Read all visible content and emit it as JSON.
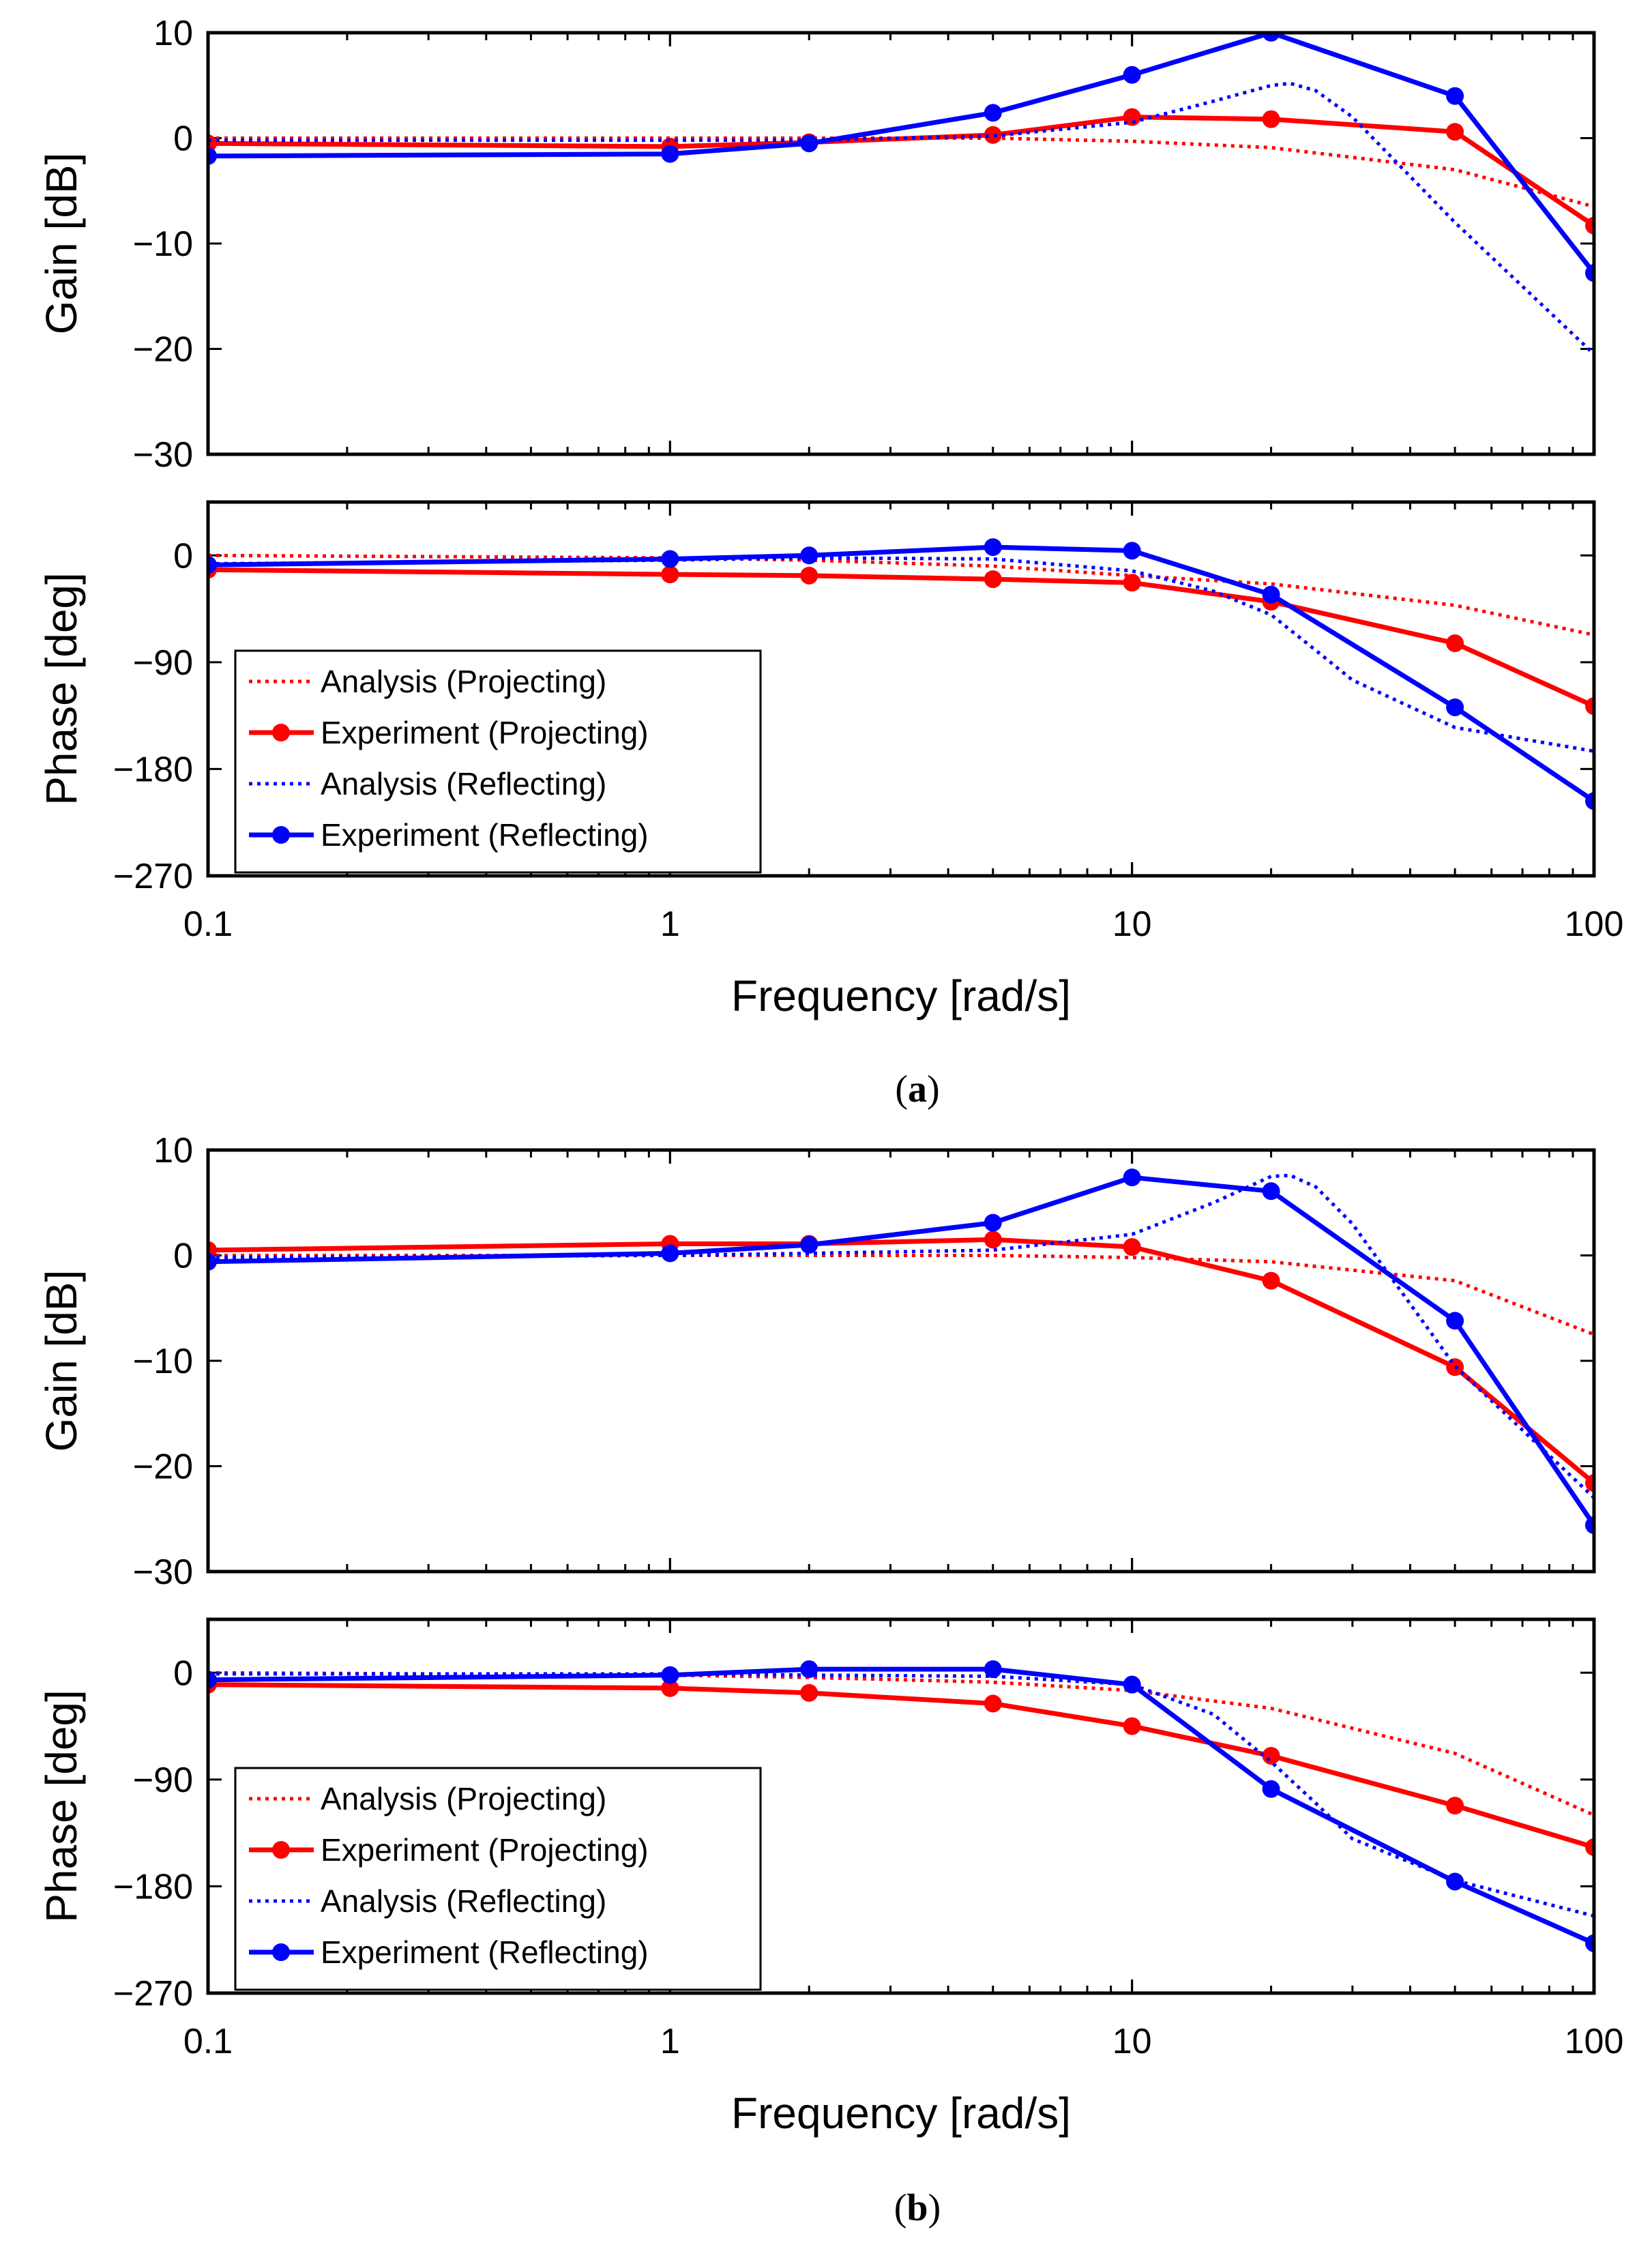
{
  "colors": {
    "projecting": "#ff0000",
    "reflecting": "#0000ff",
    "axis": "#000000"
  },
  "chart_data": [
    {
      "id": "a",
      "caption_letter": "a",
      "xlabel": "Frequency [rad/s]",
      "xscale": "log",
      "xlim": [
        0.1,
        100
      ],
      "xticks": [
        0.1,
        1,
        10,
        100
      ],
      "xtick_labels": [
        "0.1",
        "1",
        "10",
        "100"
      ],
      "subplots": [
        {
          "id": "gain",
          "type": "line",
          "ylabel": "Gain [dB]",
          "ylim": [
            -30,
            10
          ],
          "yticks": [
            10,
            0,
            -10,
            -20,
            -30
          ],
          "ytick_labels": [
            "10",
            "0",
            "−10",
            "−20",
            "−30"
          ],
          "series": [
            {
              "name": "Analysis (Projecting)",
              "style": "dotted",
              "color": "projecting",
              "x": [
                0.1,
                1,
                2,
                5,
                10,
                20,
                50,
                100
              ],
              "y": [
                0,
                0,
                0,
                0,
                -0.3,
                -0.9,
                -3,
                -6.5
              ]
            },
            {
              "name": "Experiment (Projecting)",
              "style": "solid-marker",
              "color": "projecting",
              "x": [
                0.1,
                1,
                2,
                5,
                10,
                20,
                50,
                100
              ],
              "y": [
                -0.5,
                -0.8,
                -0.4,
                0.3,
                2.0,
                1.8,
                0.6,
                -8.3
              ]
            },
            {
              "name": "Analysis (Reflecting)",
              "style": "dotted",
              "color": "reflecting",
              "x": [
                0.1,
                1,
                2,
                5,
                10,
                15,
                20,
                22,
                25,
                30,
                50,
                100
              ],
              "y": [
                -0.2,
                -0.2,
                -0.2,
                0.2,
                1.5,
                3.5,
                5.0,
                5.2,
                4.5,
                2.0,
                -8.0,
                -20.5
              ]
            },
            {
              "name": "Experiment (Reflecting)",
              "style": "solid-marker",
              "color": "reflecting",
              "x": [
                0.1,
                1,
                2,
                5,
                10,
                20,
                50,
                100
              ],
              "y": [
                -1.7,
                -1.5,
                -0.5,
                2.4,
                6.0,
                10.0,
                4.0,
                -12.8
              ]
            }
          ]
        },
        {
          "id": "phase",
          "type": "line",
          "ylabel": "Phase [deg]",
          "ylim": [
            -270,
            45
          ],
          "yticks": [
            0,
            -90,
            -180,
            -270
          ],
          "ytick_labels": [
            "0",
            "−90",
            "−180",
            "−270"
          ],
          "legend": "lower-left",
          "series": [
            {
              "name": "Analysis (Projecting)",
              "style": "dotted",
              "color": "projecting",
              "x": [
                0.1,
                1,
                2,
                5,
                10,
                20,
                50,
                100
              ],
              "y": [
                0,
                -2,
                -4,
                -9,
                -17,
                -24,
                -42,
                -67
              ]
            },
            {
              "name": "Experiment (Projecting)",
              "style": "solid-marker",
              "color": "projecting",
              "x": [
                0.1,
                1,
                2,
                5,
                10,
                20,
                50,
                100
              ],
              "y": [
                -12,
                -16,
                -17,
                -20,
                -23,
                -39,
                -74,
                -127
              ]
            },
            {
              "name": "Analysis (Reflecting)",
              "style": "dotted",
              "color": "reflecting",
              "x": [
                0.1,
                1,
                2,
                5,
                10,
                15,
                20,
                25,
                30,
                50,
                100
              ],
              "y": [
                -7,
                -4,
                -2,
                -3,
                -13,
                -30,
                -50,
                -80,
                -105,
                -145,
                -165
              ]
            },
            {
              "name": "Experiment (Reflecting)",
              "style": "solid-marker",
              "color": "reflecting",
              "x": [
                0.1,
                1,
                2,
                5,
                10,
                20,
                50,
                100
              ],
              "y": [
                -8,
                -3,
                0,
                7,
                4,
                -33,
                -128,
                -207
              ]
            }
          ]
        }
      ]
    },
    {
      "id": "b",
      "caption_letter": "b",
      "xlabel": "Frequency [rad/s]",
      "xscale": "log",
      "xlim": [
        0.1,
        100
      ],
      "xticks": [
        0.1,
        1,
        10,
        100
      ],
      "xtick_labels": [
        "0.1",
        "1",
        "10",
        "100"
      ],
      "subplots": [
        {
          "id": "gain",
          "type": "line",
          "ylabel": "Gain [dB]",
          "ylim": [
            -30,
            10
          ],
          "yticks": [
            10,
            0,
            -10,
            -20,
            -30
          ],
          "ytick_labels": [
            "10",
            "0",
            "−10",
            "−20",
            "−30"
          ],
          "series": [
            {
              "name": "Analysis (Projecting)",
              "style": "dotted",
              "color": "projecting",
              "x": [
                0.1,
                1,
                2,
                5,
                10,
                20,
                50,
                100
              ],
              "y": [
                0,
                0,
                0,
                0,
                -0.2,
                -0.6,
                -2.4,
                -7.5
              ]
            },
            {
              "name": "Experiment (Projecting)",
              "style": "solid-marker",
              "color": "projecting",
              "x": [
                0.1,
                1,
                2,
                5,
                10,
                20,
                50,
                100
              ],
              "y": [
                0.5,
                1.1,
                1.1,
                1.5,
                0.8,
                -2.4,
                -10.6,
                -21.6
              ]
            },
            {
              "name": "Analysis (Reflecting)",
              "style": "dotted",
              "color": "reflecting",
              "x": [
                0.1,
                1,
                2,
                5,
                10,
                15,
                20,
                22,
                25,
                30,
                50,
                100
              ],
              "y": [
                -0.2,
                0,
                0.2,
                0.5,
                2.0,
                5.0,
                7.5,
                7.6,
                6.5,
                3.0,
                -10.5,
                -23
              ]
            },
            {
              "name": "Experiment (Reflecting)",
              "style": "solid-marker",
              "color": "reflecting",
              "x": [
                0.1,
                1,
                2,
                5,
                10,
                20,
                50,
                100
              ],
              "y": [
                -0.6,
                0.2,
                1.0,
                3.1,
                7.4,
                6.1,
                -6.2,
                -25.6
              ]
            }
          ]
        },
        {
          "id": "phase",
          "type": "line",
          "ylabel": "Phase [deg]",
          "ylim": [
            -270,
            45
          ],
          "yticks": [
            0,
            -90,
            -180,
            -270
          ],
          "ytick_labels": [
            "0",
            "−90",
            "−180",
            "−270"
          ],
          "legend": "lower-left",
          "series": [
            {
              "name": "Analysis (Projecting)",
              "style": "dotted",
              "color": "projecting",
              "x": [
                0.1,
                1,
                2,
                5,
                10,
                20,
                50,
                100
              ],
              "y": [
                0,
                -2,
                -4,
                -8,
                -15,
                -30,
                -68,
                -120
              ]
            },
            {
              "name": "Experiment (Projecting)",
              "style": "solid-marker",
              "color": "projecting",
              "x": [
                0.1,
                1,
                2,
                5,
                10,
                20,
                50,
                100
              ],
              "y": [
                -10,
                -13,
                -17,
                -26,
                -45,
                -70,
                -112,
                -147
              ]
            },
            {
              "name": "Analysis (Reflecting)",
              "style": "dotted",
              "color": "reflecting",
              "x": [
                0.1,
                1,
                2,
                5,
                10,
                15,
                20,
                25,
                30,
                50,
                100
              ],
              "y": [
                -1,
                -1,
                -2,
                -3,
                -10,
                -35,
                -75,
                -110,
                -140,
                -175,
                -205
              ]
            },
            {
              "name": "Experiment (Reflecting)",
              "style": "solid-marker",
              "color": "reflecting",
              "x": [
                0.1,
                1,
                2,
                5,
                10,
                20,
                50,
                100
              ],
              "y": [
                -6,
                -2,
                3,
                3,
                -10,
                -98,
                -176,
                -228
              ]
            }
          ]
        }
      ]
    }
  ]
}
